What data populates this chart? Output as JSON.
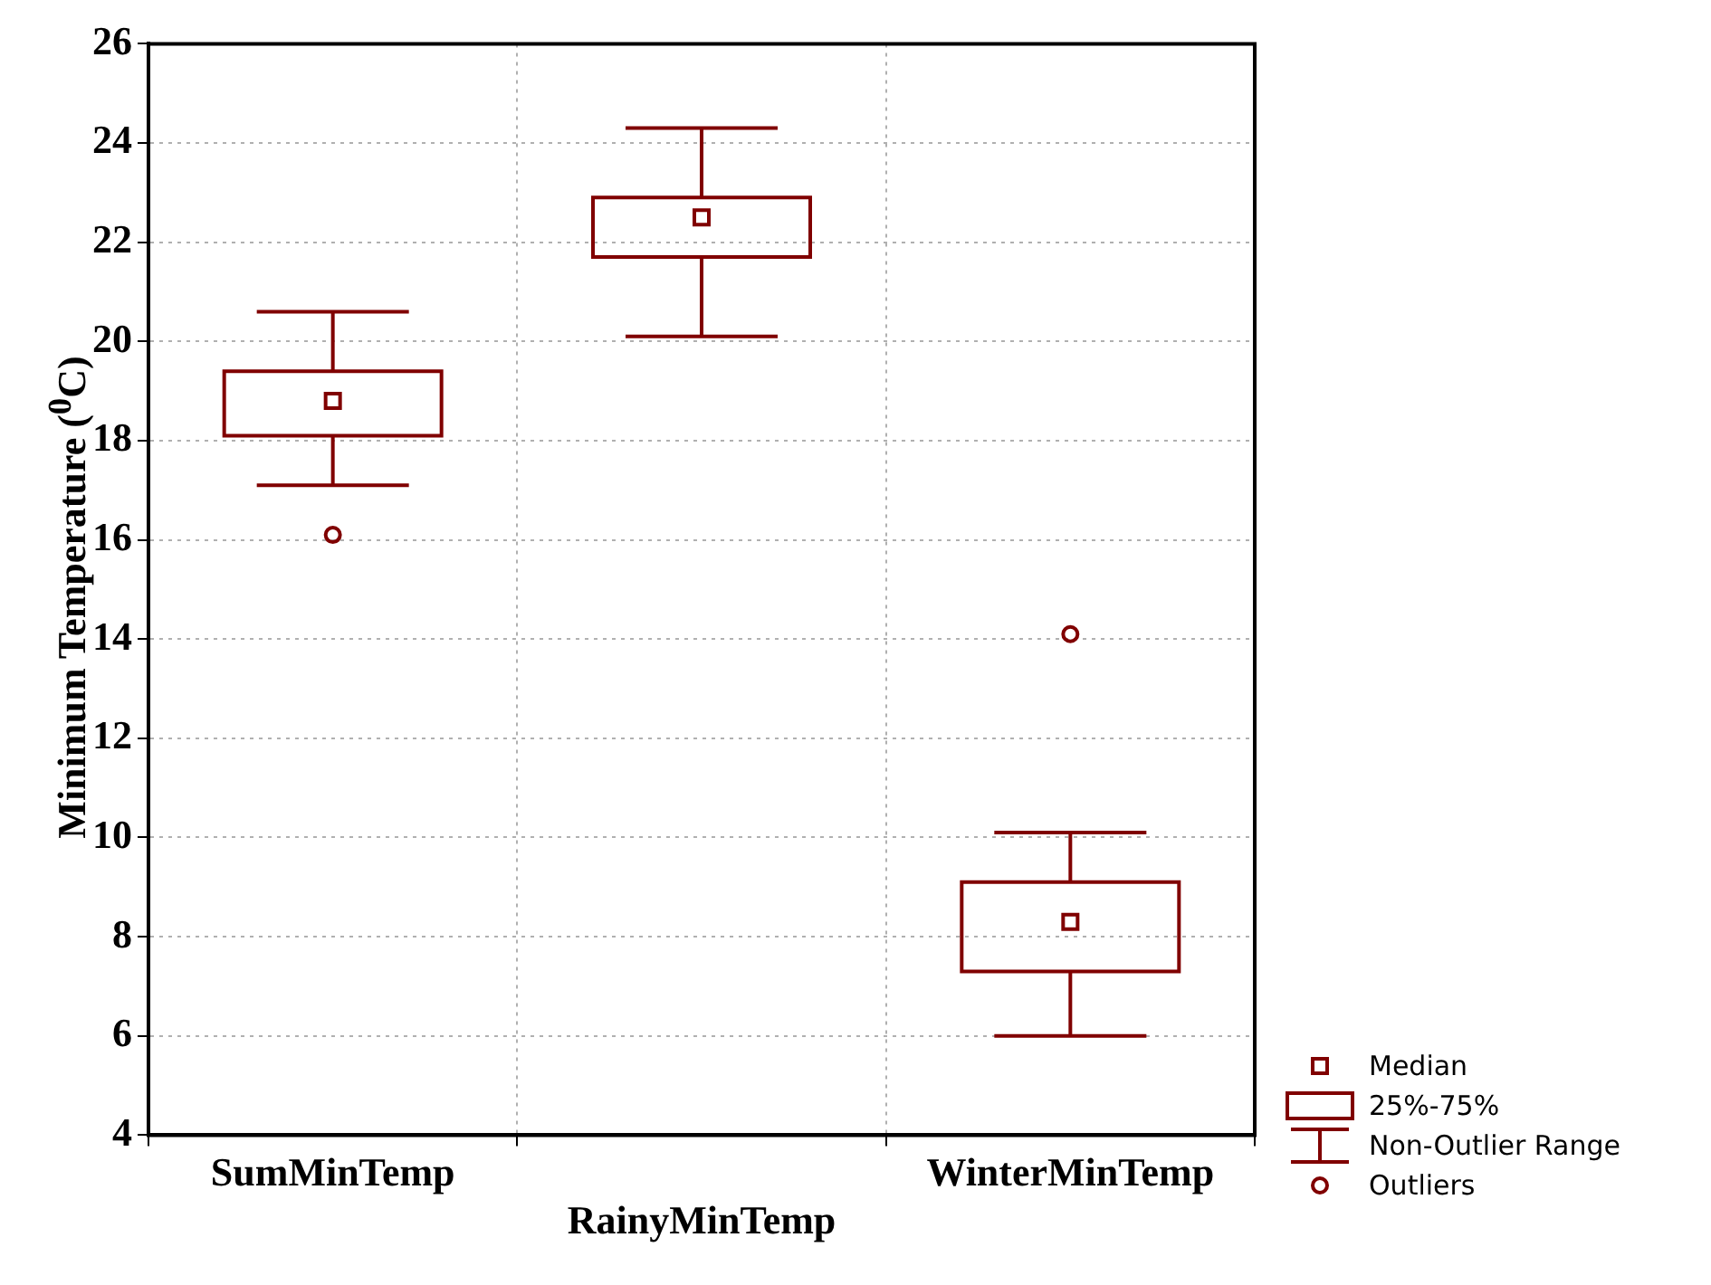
{
  "chart_data": {
    "type": "box",
    "ylabel": "Minimum Temperature ($^{0}$C)",
    "categories": [
      "SumMinTemp",
      "RainyMinTemp",
      "WinterMinTemp"
    ],
    "series": [
      {
        "color": "#800000",
        "boxes": [
          {
            "low": 17.1,
            "q1": 18.1,
            "median": 18.8,
            "q3": 19.4,
            "high": 20.6,
            "outliers": [
              16.1
            ]
          },
          {
            "low": 20.1,
            "q1": 21.7,
            "median": 22.5,
            "q3": 22.9,
            "high": 24.3
          },
          {
            "low": 6.0,
            "q1": 7.3,
            "median": 8.3,
            "q3": 9.1,
            "high": 10.1,
            "outliers": [
              14.1
            ]
          }
        ]
      }
    ],
    "ylim": [
      4,
      26
    ],
    "yticks": [
      4,
      6,
      8,
      10,
      12,
      14,
      16,
      18,
      20,
      22,
      24,
      26
    ],
    "grid": true,
    "annotations": [
      "Median",
      "25%-75%",
      "Non-Outlier Range",
      "Outliers"
    ]
  }
}
